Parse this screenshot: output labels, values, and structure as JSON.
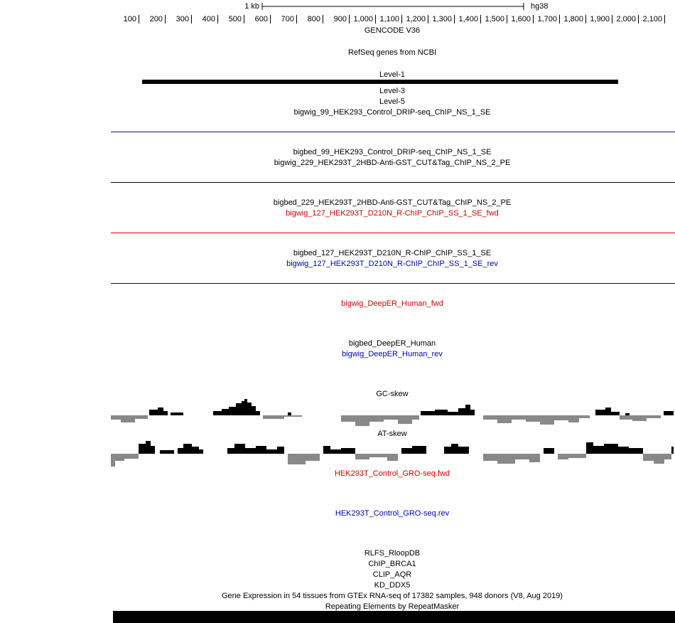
{
  "ruler": {
    "scale_label": "1 kb",
    "assembly": "hg38",
    "ticks": [
      "100",
      "200",
      "300",
      "400",
      "500",
      "600",
      "700",
      "800",
      "900",
      "1,000",
      "1,100",
      "1,200",
      "1,300",
      "1,400",
      "1,500",
      "1,600",
      "1,700",
      "1,800",
      "1,900",
      "2,000",
      "2,100"
    ]
  },
  "tracks": [
    {
      "label": "GENCODE V36",
      "color": "#000000"
    },
    {
      "label": "RefSeq genes from NCBI",
      "color": "#000000"
    },
    {
      "label": "Level-1",
      "color": "#000000"
    },
    {
      "label": "Level-3",
      "color": "#000000"
    },
    {
      "label": "Level-5",
      "color": "#000000"
    },
    {
      "label": "bigwig_99_HEK293_Control_DRIP-seq_ChIP_NS_1_SE",
      "color": "#000000"
    },
    {
      "label": "bigbed_99_HEK293_Control_DRIP-seq_ChIP_NS_1_SE",
      "color": "#000000"
    },
    {
      "label": "bigwig_229_HEK293T_2HBD-Anti-GST_CUT&Tag_ChIP_NS_2_PE",
      "color": "#000000"
    },
    {
      "label": "bigbed_229_HEK293T_2HBD-Anti-GST_CUT&Tag_ChIP_NS_2_PE",
      "color": "#000000"
    },
    {
      "label": "bigwig_127_HEK293T_D210N_R-ChIP_ChIP_SS_1_SE_fwd",
      "color": "#cc0000"
    },
    {
      "label": "bigbed_127_HEK293T_D210N_R-ChIP_ChIP_SS_1_SE",
      "color": "#000000"
    },
    {
      "label": "bigwig_127_HEK293T_D210N_R-ChIP_ChIP_SS_1_SE_rev",
      "color": "#0000b4"
    },
    {
      "label": "bigwig_DeepER_Human_fwd",
      "color": "#cc0000"
    },
    {
      "label": "bigbed_DeepER_Human",
      "color": "#000000"
    },
    {
      "label": "bigwig_DeepER_Human_rev",
      "color": "#0000b4"
    },
    {
      "label": "GC-skew",
      "color": "#000000"
    },
    {
      "label": "AT-skew",
      "color": "#000000"
    },
    {
      "label": "HEK293T_Control_GRO-seq.fwd",
      "color": "#cc0000"
    },
    {
      "label": "HEK293T_Control_GRO-seq.rev",
      "color": "#0000b4"
    },
    {
      "label": "RLFS_RloopDB",
      "color": "#000000"
    },
    {
      "label": "ChIP_BRCA1",
      "color": "#000000"
    },
    {
      "label": "CLIP_AQR",
      "color": "#000000"
    },
    {
      "label": "KD_DDX5",
      "color": "#000000"
    },
    {
      "label": "Gene Expression in 54 tissues from GTEx RNA-seq of 17382 samples, 948 donors (V8, Aug 2019)",
      "color": "#000000"
    },
    {
      "label": "Repeating Elements by RepeatMasker",
      "color": "#000000"
    }
  ]
}
